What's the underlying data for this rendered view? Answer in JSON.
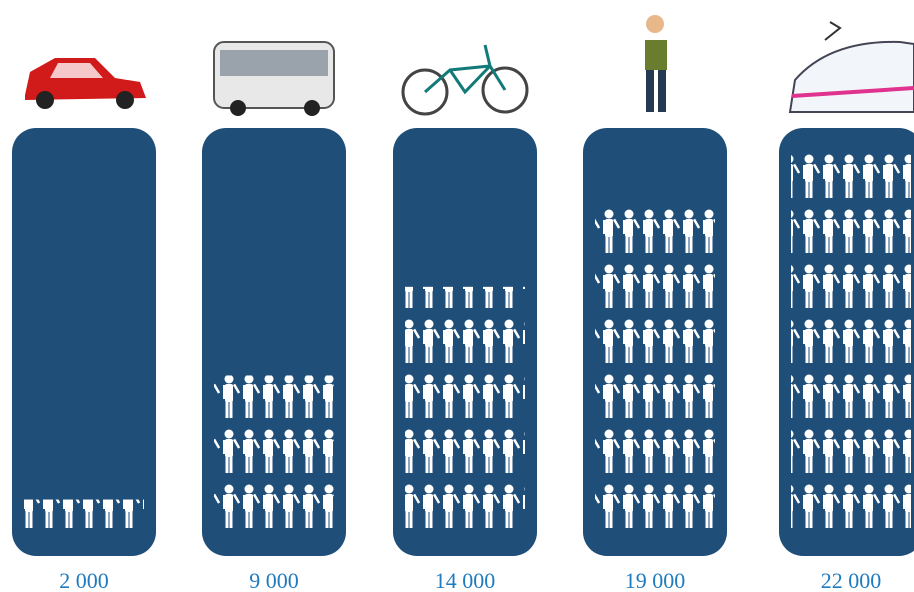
{
  "chart_data": {
    "type": "pictogram",
    "categories": [
      null,
      null,
      null,
      null,
      null
    ],
    "values": [
      2000,
      9000,
      14000,
      19000,
      22000
    ],
    "value_labels": [
      "2 000",
      "9 000",
      "14 000",
      "19 000",
      "22 000"
    ],
    "color": "#1f4e79",
    "icon_color": "#ffffff",
    "label_color": "#1f7bbf"
  }
}
